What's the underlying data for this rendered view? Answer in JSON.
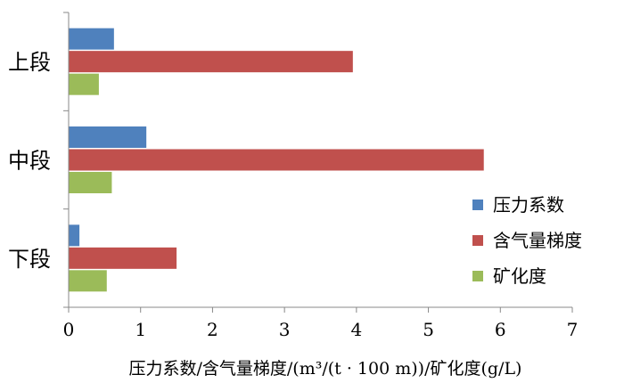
{
  "chart_data": {
    "type": "bar",
    "orientation": "horizontal",
    "categories": [
      "上段",
      "中段",
      "下段"
    ],
    "series": [
      {
        "name": "压力系数",
        "color": "#4F81BD",
        "values": [
          0.63,
          1.08,
          0.15
        ]
      },
      {
        "name": "含气量梯度",
        "color": "#C0504D",
        "values": [
          3.95,
          5.77,
          1.5
        ]
      },
      {
        "name": "矿化度",
        "color": "#9BBB59",
        "values": [
          0.42,
          0.6,
          0.53
        ]
      }
    ],
    "xlabel": "压力系数/含气量梯度/(m³/(t · 100 m))/矿化度(g/L)",
    "xlim": [
      0,
      7
    ],
    "x_ticks": [
      "0",
      "1",
      "2",
      "3",
      "4",
      "5",
      "6",
      "7"
    ],
    "grid": false,
    "legend_position": "right"
  }
}
